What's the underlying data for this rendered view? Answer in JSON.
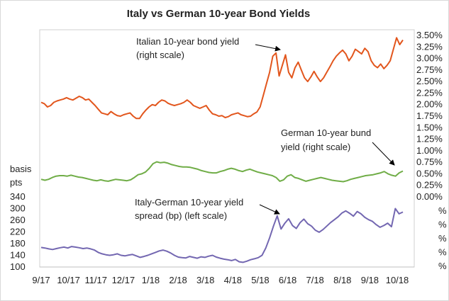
{
  "chart_data": {
    "type": "line",
    "title": "Italy vs German 10-year Bond Yields",
    "x_tick_labels": [
      "9/17",
      "10/17",
      "11/17",
      "12/17",
      "1/18",
      "2/18",
      "3/18",
      "4/18",
      "5/18",
      "6/18",
      "7/18",
      "8/18",
      "9/18",
      "10/18"
    ],
    "right_axis": {
      "ticks": [
        "3.50%",
        "3.25%",
        "3.00%",
        "2.75%",
        "2.50%",
        "2.25%",
        "2.00%",
        "1.75%",
        "1.50%",
        "1.25%",
        "1.00%",
        "0.75%",
        "0.50%",
        "0.25%",
        "0.00%"
      ],
      "extra_labels": [
        "%",
        "%",
        "%",
        "%",
        "%"
      ],
      "range": [
        0.0,
        3.5
      ]
    },
    "left_axis": {
      "label_line1": "basis",
      "label_line2": "pts",
      "ticks": [
        "340",
        "300",
        "260",
        "220",
        "180",
        "140",
        "100"
      ],
      "range": [
        100,
        340
      ]
    },
    "series": [
      {
        "annotation_line1": "Italian 10-year bond  yield",
        "annotation_line2": "(right scale)",
        "color": "#e2561d",
        "axis": "right",
        "values": [
          2.05,
          2.02,
          1.95,
          1.98,
          2.05,
          2.08,
          2.1,
          2.12,
          2.15,
          2.12,
          2.1,
          2.14,
          2.18,
          2.15,
          2.1,
          2.12,
          2.05,
          1.98,
          1.9,
          1.82,
          1.8,
          1.78,
          1.85,
          1.8,
          1.76,
          1.75,
          1.78,
          1.8,
          1.82,
          1.75,
          1.7,
          1.7,
          1.8,
          1.88,
          1.95,
          2.0,
          1.98,
          2.05,
          2.1,
          2.08,
          2.03,
          2.0,
          1.98,
          2.0,
          2.02,
          2.05,
          2.1,
          2.05,
          1.98,
          1.95,
          1.92,
          1.95,
          1.98,
          1.88,
          1.8,
          1.78,
          1.75,
          1.76,
          1.72,
          1.74,
          1.78,
          1.8,
          1.82,
          1.78,
          1.76,
          1.74,
          1.75,
          1.8,
          1.84,
          1.95,
          2.2,
          2.45,
          2.7,
          3.05,
          3.12,
          2.62,
          2.85,
          3.08,
          2.7,
          2.58,
          2.8,
          2.92,
          2.75,
          2.58,
          2.5,
          2.6,
          2.72,
          2.6,
          2.5,
          2.58,
          2.7,
          2.82,
          2.95,
          3.05,
          3.12,
          3.18,
          3.1,
          2.95,
          3.05,
          3.2,
          3.15,
          3.1,
          3.22,
          3.15,
          2.95,
          2.85,
          2.8,
          2.88,
          2.78,
          2.85,
          2.95,
          3.2,
          3.45,
          3.3,
          3.4
        ]
      },
      {
        "annotation_line1": "German 10-year bund",
        "annotation_line2": "yield (right scale)",
        "color": "#70ad47",
        "axis": "right",
        "values": [
          0.38,
          0.36,
          0.38,
          0.42,
          0.45,
          0.46,
          0.46,
          0.45,
          0.47,
          0.45,
          0.43,
          0.42,
          0.4,
          0.38,
          0.36,
          0.35,
          0.37,
          0.35,
          0.34,
          0.36,
          0.38,
          0.37,
          0.36,
          0.35,
          0.37,
          0.42,
          0.48,
          0.5,
          0.54,
          0.62,
          0.72,
          0.76,
          0.74,
          0.75,
          0.73,
          0.7,
          0.68,
          0.66,
          0.65,
          0.65,
          0.64,
          0.62,
          0.6,
          0.57,
          0.55,
          0.53,
          0.52,
          0.52,
          0.55,
          0.57,
          0.6,
          0.62,
          0.6,
          0.57,
          0.55,
          0.58,
          0.6,
          0.57,
          0.54,
          0.52,
          0.5,
          0.48,
          0.46,
          0.42,
          0.34,
          0.37,
          0.45,
          0.48,
          0.42,
          0.4,
          0.37,
          0.34,
          0.36,
          0.38,
          0.4,
          0.42,
          0.4,
          0.38,
          0.36,
          0.35,
          0.34,
          0.33,
          0.35,
          0.38,
          0.4,
          0.42,
          0.44,
          0.46,
          0.47,
          0.48,
          0.5,
          0.52,
          0.55,
          0.5,
          0.47,
          0.45,
          0.52,
          0.56
        ]
      },
      {
        "annotation_line1": "Italy-German 10-year yield",
        "annotation_line2": "spread (bp) (left scale)",
        "color": "#7367b1",
        "axis": "left",
        "values": [
          167,
          165,
          162,
          160,
          163,
          166,
          168,
          165,
          170,
          168,
          166,
          163,
          165,
          162,
          158,
          150,
          145,
          142,
          140,
          142,
          145,
          140,
          138,
          141,
          143,
          138,
          133,
          136,
          140,
          145,
          150,
          155,
          158,
          154,
          148,
          140,
          134,
          132,
          131,
          136,
          133,
          130,
          135,
          133,
          137,
          140,
          134,
          130,
          127,
          125,
          122,
          126,
          118,
          116,
          120,
          125,
          128,
          132,
          140,
          165,
          200,
          240,
          275,
          230,
          250,
          265,
          242,
          232,
          252,
          264,
          248,
          240,
          226,
          219,
          228,
          240,
          252,
          262,
          272,
          285,
          292,
          284,
          274,
          290,
          282,
          270,
          262,
          256,
          245,
          236,
          242,
          250,
          238,
          300,
          282,
          288
        ]
      }
    ]
  }
}
